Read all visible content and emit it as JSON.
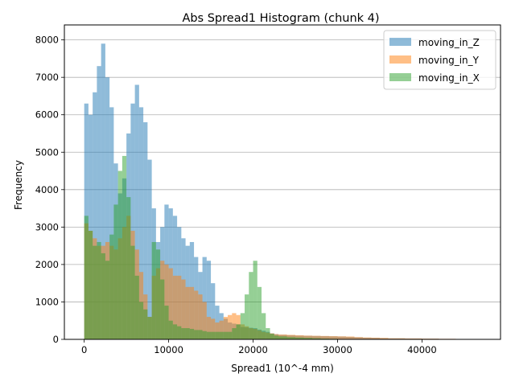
{
  "chart_data": {
    "type": "histogram",
    "title": "Abs Spread1 Histogram (chunk 4)",
    "xlabel": "Spread1 (10^-4 mm)",
    "ylabel": "Frequency",
    "xlim": [
      -2350,
      49300
    ],
    "ylim": [
      0,
      8400
    ],
    "xticks": [
      0,
      10000,
      20000,
      30000,
      40000
    ],
    "xtick_labels": [
      "0",
      "10000",
      "20000",
      "30000",
      "40000"
    ],
    "yticks": [
      0,
      1000,
      2000,
      3000,
      4000,
      5000,
      6000,
      7000,
      8000
    ],
    "ytick_labels": [
      "0",
      "1000",
      "2000",
      "3000",
      "4000",
      "5000",
      "6000",
      "7000",
      "8000"
    ],
    "grid": "y",
    "legend": "upper right",
    "series": [
      {
        "name": "moving_in_Z",
        "color": "#1f77b4",
        "alpha": 0.5,
        "bin_edges": [
          0,
          500,
          1000,
          1500,
          2000,
          2500,
          3000,
          3500,
          4000,
          4500,
          5000,
          5500,
          6000,
          6500,
          7000,
          7500,
          8000,
          8500,
          9000,
          9500,
          10000,
          10500,
          11000,
          11500,
          12000,
          12500,
          13000,
          13500,
          14000,
          14500,
          15000,
          15500,
          16000,
          16500,
          17000,
          17500,
          18000,
          18500,
          19000,
          19500,
          20000,
          20500,
          21000,
          21500,
          22000,
          22500,
          23000,
          24000,
          25000,
          26000,
          27000,
          28000,
          29000,
          30000,
          31000,
          32000,
          33000,
          34000,
          35000,
          36000,
          38000,
          40000,
          42000,
          44000
        ],
        "counts": [
          6300,
          6000,
          6600,
          7300,
          7900,
          7000,
          6200,
          4700,
          3900,
          4300,
          5500,
          6300,
          6800,
          6200,
          5800,
          4800,
          3500,
          2600,
          3000,
          3600,
          3500,
          3300,
          3000,
          2700,
          2500,
          2600,
          2200,
          1800,
          2200,
          2100,
          1500,
          900,
          700,
          550,
          450,
          420,
          400,
          330,
          320,
          310,
          300,
          260,
          230,
          200,
          160,
          140,
          120,
          110,
          100,
          95,
          90,
          85,
          80,
          75,
          65,
          55,
          45,
          40,
          30,
          25,
          20,
          15,
          10
        ]
      },
      {
        "name": "moving_in_Y",
        "color": "#ff7f0e",
        "alpha": 0.5,
        "bin_edges": [
          0,
          500,
          1000,
          1500,
          2000,
          2500,
          3000,
          3500,
          4000,
          4500,
          5000,
          5500,
          6000,
          6500,
          7000,
          7500,
          8000,
          8500,
          9000,
          9500,
          10000,
          10500,
          11000,
          11500,
          12000,
          12500,
          13000,
          13500,
          14000,
          14500,
          15000,
          15500,
          16000,
          16500,
          17000,
          17500,
          18000,
          18500,
          19000,
          19500,
          20000,
          20500,
          21000,
          21500,
          22000,
          22500,
          23000,
          24000,
          25000,
          26000,
          27000,
          28000,
          29000,
          30000,
          31000,
          32000,
          33000,
          34000,
          35000,
          36000,
          38000,
          40000,
          42000,
          44000
        ],
        "counts": [
          3100,
          2900,
          2700,
          2500,
          2500,
          2600,
          2500,
          2400,
          2700,
          3000,
          3300,
          2900,
          2400,
          1800,
          1200,
          600,
          1700,
          1900,
          2100,
          2000,
          1900,
          1700,
          1700,
          1600,
          1400,
          1400,
          1300,
          1200,
          1000,
          600,
          550,
          450,
          500,
          600,
          650,
          700,
          650,
          400,
          350,
          300,
          280,
          240,
          200,
          180,
          160,
          140,
          130,
          120,
          110,
          100,
          95,
          90,
          85,
          80,
          75,
          60,
          50,
          45,
          40,
          30,
          25,
          20,
          15
        ]
      },
      {
        "name": "moving_in_X",
        "color": "#2ca02c",
        "alpha": 0.5,
        "bin_edges": [
          0,
          500,
          1000,
          1500,
          2000,
          2500,
          3000,
          3500,
          4000,
          4500,
          5000,
          5500,
          6000,
          6500,
          7000,
          7500,
          8000,
          8500,
          9000,
          9500,
          10000,
          10500,
          11000,
          11500,
          12000,
          12500,
          13000,
          13500,
          14000,
          14500,
          15000,
          15500,
          16000,
          16500,
          17000,
          17500,
          18000,
          18500,
          19000,
          19500,
          20000,
          20500,
          21000,
          21500,
          22000,
          22500,
          23000,
          24000,
          25000,
          26000,
          27000,
          28000,
          29000,
          30000,
          31000,
          32000,
          33000,
          34000,
          35000,
          36000,
          38000,
          40000,
          42000,
          44000
        ],
        "counts": [
          3300,
          2900,
          2500,
          2600,
          2300,
          2100,
          2800,
          3600,
          4500,
          4900,
          3800,
          2500,
          1700,
          1000,
          800,
          600,
          2600,
          2400,
          1600,
          900,
          500,
          400,
          350,
          300,
          300,
          280,
          250,
          250,
          220,
          200,
          200,
          200,
          200,
          200,
          200,
          300,
          400,
          700,
          1200,
          1800,
          2100,
          1400,
          700,
          300,
          150,
          100,
          80,
          60,
          50,
          40,
          30,
          20,
          15,
          10,
          8,
          6,
          4,
          3,
          2,
          1,
          0,
          0,
          0
        ]
      }
    ]
  }
}
